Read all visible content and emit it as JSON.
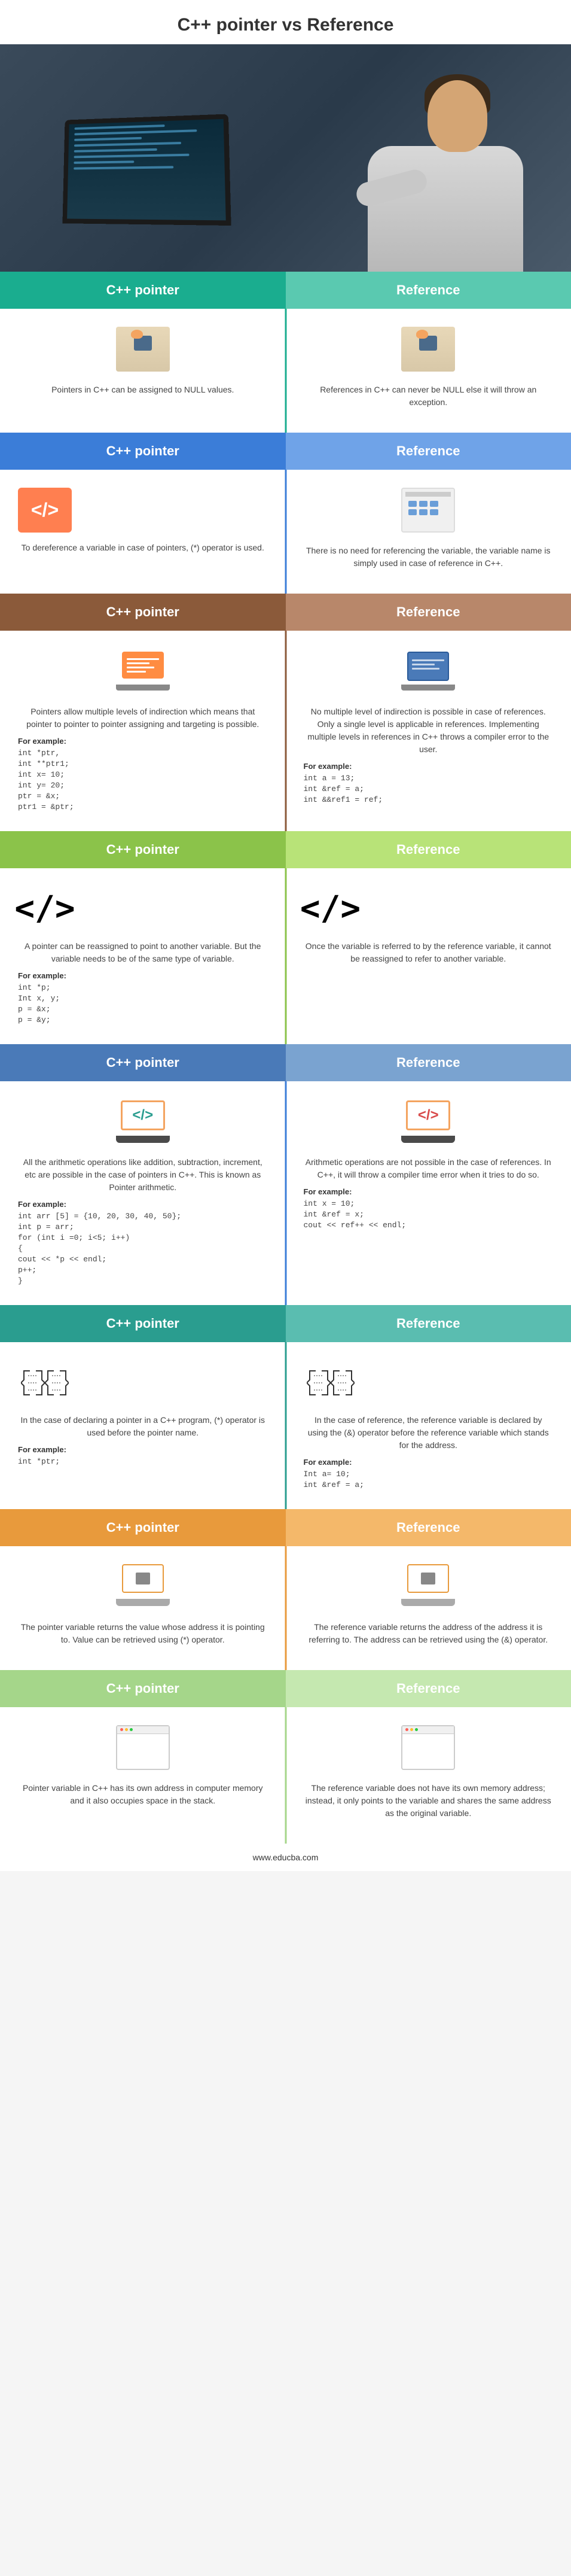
{
  "title": "C++ pointer vs Reference",
  "footer": "www.educba.com",
  "sections": [
    {
      "header_colors": [
        "#1aad8f",
        "#5ac9b0"
      ],
      "divider_class": "div-teal",
      "left_label": "C++ pointer",
      "right_label": "Reference",
      "icon_type": "desk",
      "left_desc": "Pointers in C++ can be assigned to NULL values.",
      "right_desc": "References in C++ can never be NULL else it will throw an exception."
    },
    {
      "header_colors": [
        "#3b7dd8",
        "#6fa3e8"
      ],
      "divider_class": "div-blue",
      "left_label": "C++ pointer",
      "right_label": "Reference",
      "icon_type": "code-browser",
      "left_desc": "To dereference a variable in case of pointers, (*) operator is used.",
      "right_desc": "There is no need for referencing the variable, the variable name is simply used in case of reference in C++."
    },
    {
      "header_colors": [
        "#8b5a3a",
        "#b8876a"
      ],
      "divider_class": "div-brown",
      "left_label": "C++ pointer",
      "right_label": "Reference",
      "icon_type": "laptop-pair",
      "left_desc": "Pointers allow multiple levels of indirection which means that pointer to pointer to pointer assigning and targeting is possible.",
      "right_desc": "No multiple level of indirection is possible in case of references. Only a single level is applicable in references. Implementing multiple levels in references in C++ throws a compiler error to the user.",
      "left_example_label": "For example:",
      "left_code": [
        "int *ptr,",
        "int **ptr1;",
        "int x= 10;",
        "int y= 20;",
        "ptr = &x;",
        "ptr1 = &ptr;"
      ],
      "right_example_label": "For example:",
      "right_code": [
        "int a = 13;",
        "int &ref = a;",
        "int &&ref1 = ref;"
      ]
    },
    {
      "header_colors": [
        "#8bc34a",
        "#b8e378"
      ],
      "divider_class": "div-green",
      "left_label": "C++ pointer",
      "right_label": "Reference",
      "icon_type": "code-black",
      "left_desc": "A pointer can be reassigned to point to another variable. But the variable needs to be of the same type of variable.",
      "right_desc": "Once the variable is referred to by the reference variable, it cannot be reassigned to refer to another variable.",
      "left_example_label": "For example:",
      "left_code": [
        "int *p;",
        "Int x, y;",
        "p = &x;",
        "p = &y;"
      ]
    },
    {
      "header_colors": [
        "#4a7ab8",
        "#7aa3d0"
      ],
      "divider_class": "div-blue",
      "left_label": "C++ pointer",
      "right_label": "Reference",
      "icon_type": "laptop-code",
      "left_desc": "All the arithmetic operations like addition, subtraction, increment, etc are possible in the case of pointers in C++. This is known as Pointer arithmetic.",
      "right_desc": "Arithmetic operations are not possible in the case of references. In C++, it will throw a compiler time error when it tries to do so.",
      "left_example_label": "For example:",
      "left_code": [
        "int arr [5] = {10, 20, 30, 40, 50};",
        "int p = arr;",
        "for (int i =0; i<5; i++)",
        "{",
        "cout << *p << endl;",
        "p++;",
        "}"
      ],
      "right_example_label": "For example:",
      "right_code": [
        "int x = 10;",
        "int &ref = x;",
        "cout << ref++ << endl;"
      ]
    },
    {
      "header_colors": [
        "#2a9d8f",
        "#5abdb0"
      ],
      "divider_class": "div-darkteal",
      "left_label": "C++ pointer",
      "right_label": "Reference",
      "icon_type": "brackets",
      "left_desc": "In the case of declaring a pointer in a C++ program, (*) operator is used before the pointer name.",
      "right_desc": "In the case of reference, the reference variable is declared by using the (&) operator before the reference variable which stands for the address.",
      "left_example_label": "For example:",
      "left_code": [
        "int *ptr;"
      ],
      "right_example_label": "For example:",
      "right_code": [
        "Int a= 10;",
        "int &ref = a;"
      ]
    },
    {
      "header_colors": [
        "#e89a3c",
        "#f4b86a"
      ],
      "divider_class": "div-orange",
      "left_label": "C++ pointer",
      "right_label": "Reference",
      "icon_type": "laptop-gray",
      "left_desc": "The pointer variable returns the value whose address it is pointing to. Value can be retrieved using (*) operator.",
      "right_desc": "The reference variable returns the address of the address it is referring to. The address can be retrieved using the (&) operator."
    },
    {
      "header_colors": [
        "#a5d68a",
        "#c5e8b0"
      ],
      "divider_class": "div-lightgreen",
      "left_label": "C++ pointer",
      "right_label": "Reference",
      "icon_type": "window",
      "left_desc": "Pointer variable in C++ has its own address in computer memory and it also occupies space in the stack.",
      "right_desc": "The reference variable does not have its own memory address; instead, it only points to the variable and shares the same address as the original variable."
    }
  ]
}
